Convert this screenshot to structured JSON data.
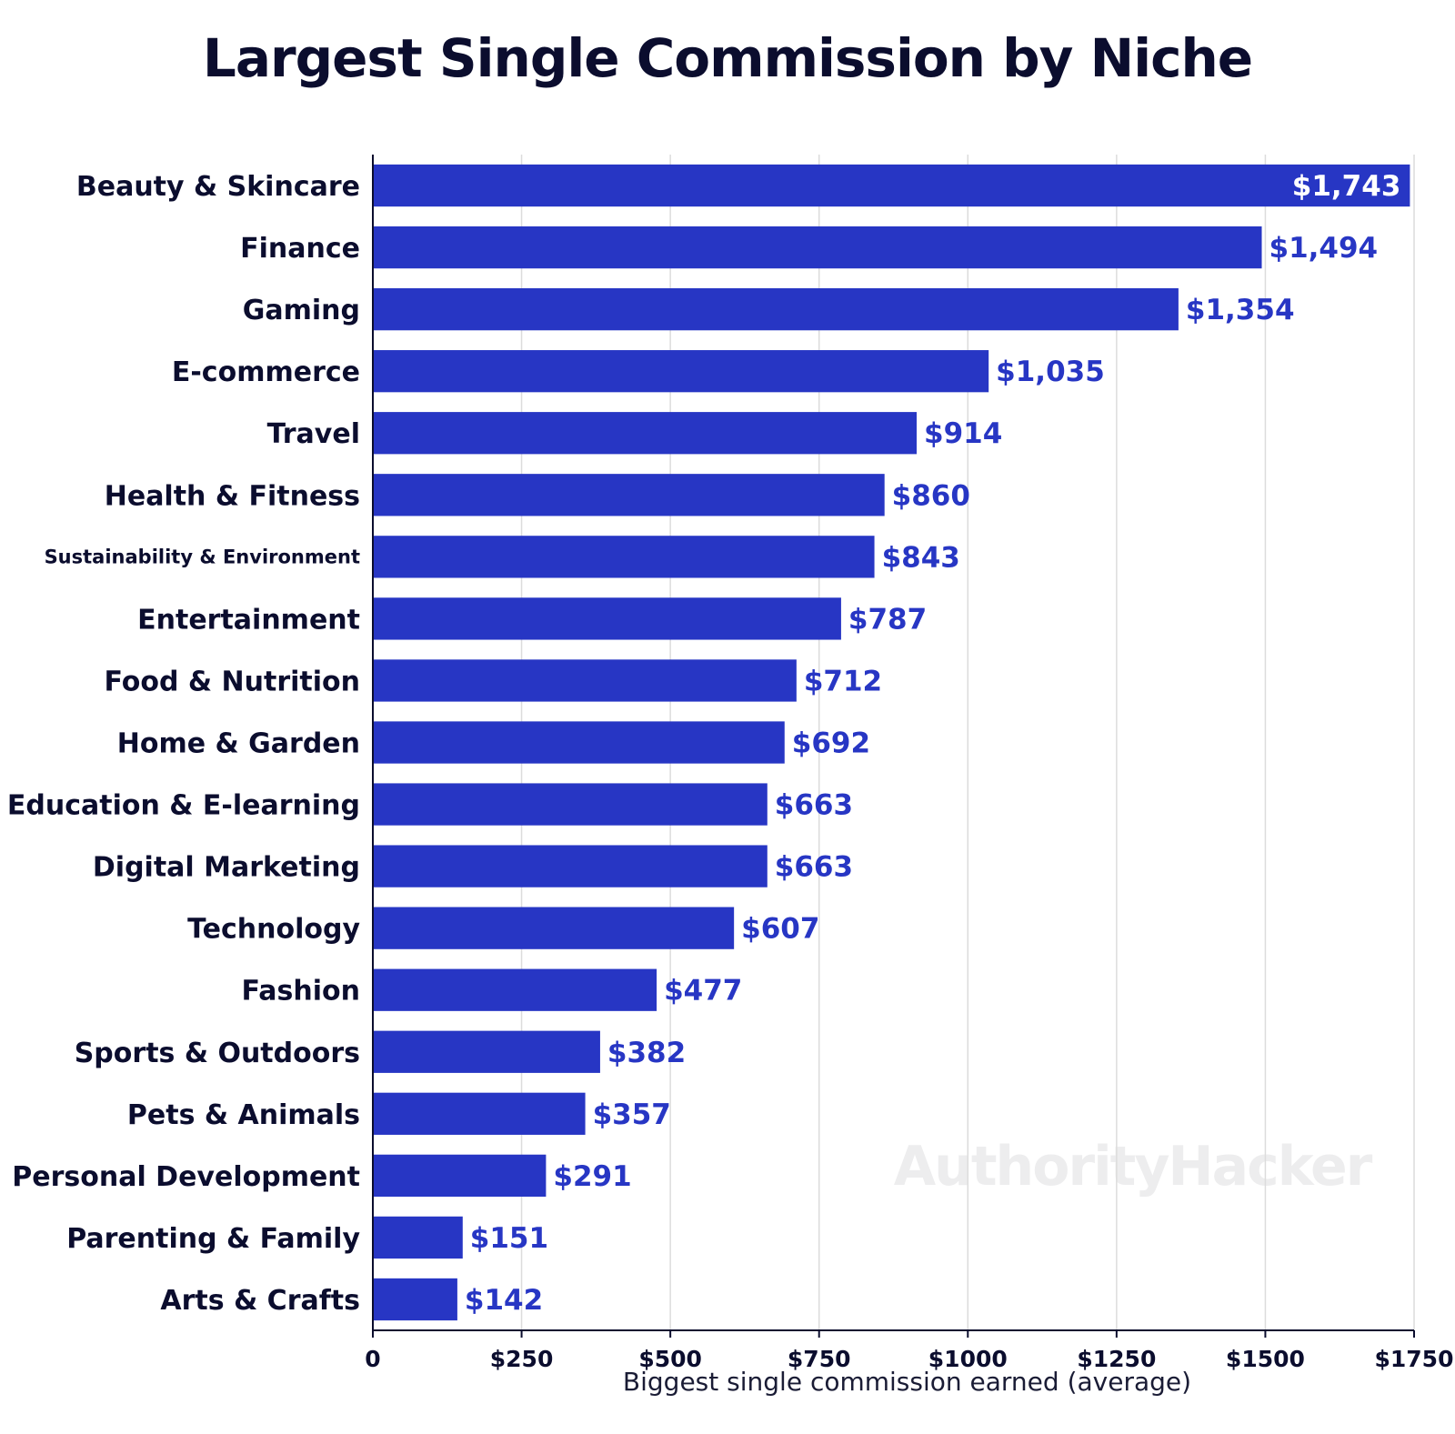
{
  "chart_data": {
    "type": "bar",
    "orientation": "horizontal",
    "title": "Largest Single Commission by Niche",
    "xlabel": "Biggest single commission earned (average)",
    "ylabel": "",
    "xlim": [
      0,
      1750
    ],
    "x_ticks": [
      0,
      250,
      500,
      750,
      1000,
      1250,
      1500,
      1750
    ],
    "x_tick_labels": [
      "0",
      "$250",
      "$500",
      "$750",
      "$1000",
      "$1250",
      "$1500",
      "$1750"
    ],
    "grid": "vertical",
    "categories": [
      "Beauty & Skincare",
      "Finance",
      "Gaming",
      "E-commerce",
      "Travel",
      "Health & Fitness",
      "Sustainability & Environment",
      "Entertainment",
      "Food & Nutrition",
      "Home & Garden",
      "Education & E-learning",
      "Digital Marketing",
      "Technology",
      "Fashion",
      "Sports & Outdoors",
      "Pets & Animals",
      "Personal Development",
      "Parenting & Family",
      "Arts & Crafts"
    ],
    "values": [
      1743,
      1494,
      1354,
      1035,
      914,
      860,
      843,
      787,
      712,
      692,
      663,
      663,
      607,
      477,
      382,
      357,
      291,
      151,
      142
    ],
    "value_labels": [
      "$1,743",
      "$1,494",
      "$1,354",
      "$1,035",
      "$914",
      "$860",
      "$843",
      "$787",
      "$712",
      "$692",
      "$663",
      "$663",
      "$607",
      "$477",
      "$382",
      "$357",
      "$291",
      "$151",
      "$142"
    ],
    "bar_color": "#2736c4",
    "label_color": "#2736c4",
    "inside_label_color": "#ffffff",
    "watermark": "AuthorityHacker"
  }
}
